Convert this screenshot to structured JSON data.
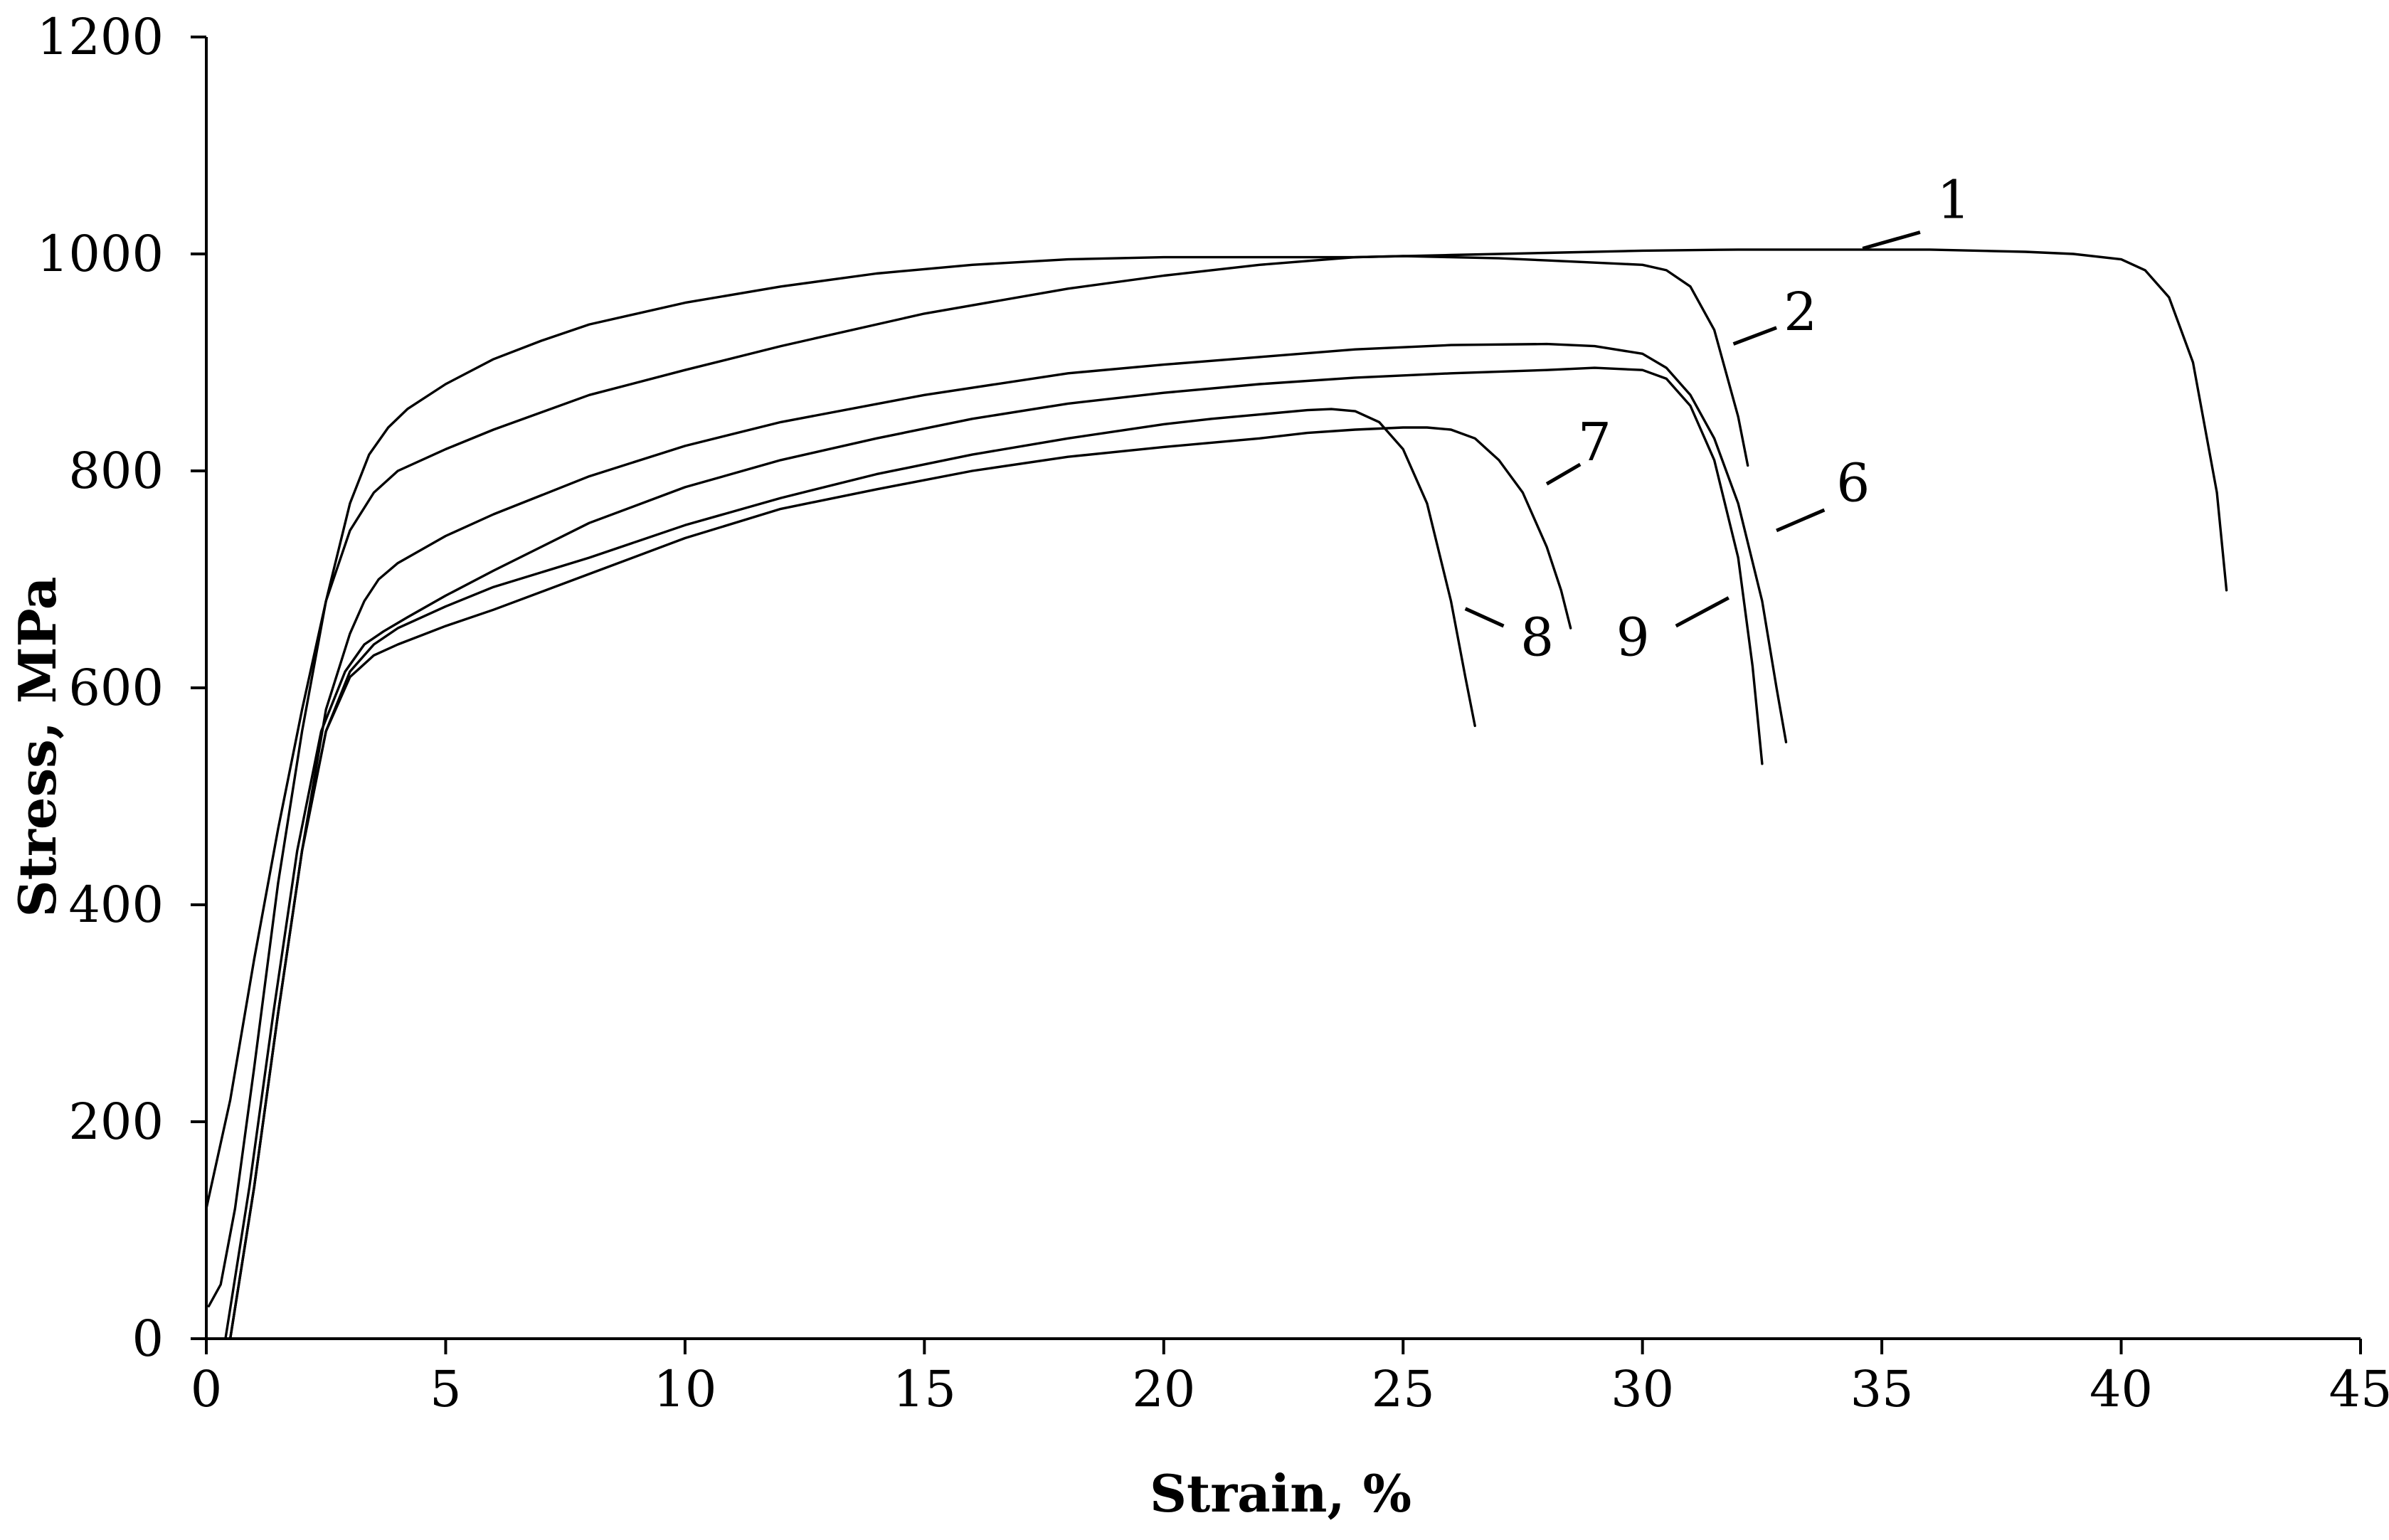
{
  "chart_data": {
    "type": "line",
    "title": "",
    "xlabel": "Strain, %",
    "ylabel": "Stress, MPa",
    "xlim": [
      0,
      45
    ],
    "ylim": [
      0,
      1200
    ],
    "xticks": [
      0,
      5,
      10,
      15,
      20,
      25,
      30,
      35,
      40,
      45
    ],
    "yticks": [
      0,
      200,
      400,
      600,
      800,
      1000,
      1200
    ],
    "grid": false,
    "legend": "none",
    "series": [
      {
        "name": "1",
        "x": [
          0.0,
          0.5,
          1.0,
          1.5,
          2.0,
          2.5,
          3.0,
          3.4,
          3.8,
          4.2,
          5,
          6,
          7,
          8,
          10,
          12,
          14,
          16,
          18,
          20,
          22,
          24,
          26,
          28,
          30,
          32,
          34,
          36,
          38,
          39,
          40,
          40.5,
          41,
          41.5,
          42,
          42.2
        ],
        "y": [
          120,
          220,
          350,
          470,
          580,
          680,
          770,
          815,
          840,
          857,
          880,
          903,
          920,
          935,
          955,
          970,
          982,
          990,
          995,
          997,
          997,
          997,
          999,
          1001,
          1003,
          1004,
          1004,
          1004,
          1002,
          1000,
          995,
          985,
          960,
          900,
          780,
          690
        ]
      },
      {
        "name": "2",
        "x": [
          0.05,
          0.3,
          0.6,
          1.0,
          1.5,
          2.0,
          2.5,
          3.0,
          3.5,
          4.0,
          5,
          6,
          8,
          10,
          12,
          15,
          18,
          20,
          22,
          24,
          25,
          26,
          27,
          28,
          29,
          30,
          30.5,
          31,
          31.5,
          32,
          32.2
        ],
        "y": [
          30,
          50,
          120,
          250,
          420,
          560,
          680,
          745,
          780,
          800,
          820,
          838,
          870,
          893,
          915,
          945,
          968,
          980,
          990,
          997,
          998,
          997,
          996,
          994,
          992,
          990,
          985,
          970,
          930,
          850,
          805
        ]
      },
      {
        "name": "6",
        "x": [
          0.5,
          1.0,
          1.5,
          2.0,
          2.5,
          3.0,
          3.3,
          3.6,
          4.0,
          5,
          6,
          8,
          10,
          12,
          15,
          18,
          20,
          22,
          24,
          26,
          28,
          29,
          30,
          30.5,
          31,
          31.5,
          32,
          32.5,
          32.8,
          33.0
        ],
        "y": [
          0,
          140,
          300,
          450,
          580,
          650,
          680,
          700,
          715,
          740,
          760,
          795,
          823,
          845,
          870,
          890,
          898,
          905,
          912,
          916,
          917,
          915,
          908,
          895,
          870,
          830,
          770,
          680,
          600,
          550
        ]
      },
      {
        "name": "7",
        "x": [
          0.5,
          1.0,
          1.5,
          2.0,
          2.5,
          3.0,
          3.5,
          4.0,
          5,
          6,
          8,
          10,
          12,
          14,
          16,
          18,
          20,
          22,
          23,
          24,
          25,
          25.5,
          26,
          26.5,
          27,
          27.5,
          28,
          28.3,
          28.5
        ],
        "y": [
          0,
          140,
          300,
          450,
          560,
          610,
          630,
          640,
          657,
          672,
          705,
          738,
          765,
          783,
          800,
          813,
          822,
          830,
          835,
          838,
          840,
          840,
          838,
          830,
          810,
          780,
          730,
          690,
          655
        ]
      },
      {
        "name": "8",
        "x": [
          0.5,
          1.0,
          1.5,
          2.0,
          2.5,
          3.0,
          3.5,
          4.0,
          5,
          6,
          8,
          10,
          12,
          14,
          16,
          18,
          20,
          21,
          22,
          23,
          23.5,
          24,
          24.5,
          25,
          25.5,
          26,
          26.3,
          26.5
        ],
        "y": [
          0,
          140,
          300,
          450,
          560,
          615,
          640,
          655,
          675,
          693,
          720,
          750,
          775,
          797,
          815,
          830,
          843,
          848,
          852,
          856,
          857,
          855,
          845,
          820,
          770,
          680,
          610,
          565
        ]
      },
      {
        "name": "9",
        "x": [
          0.4,
          0.9,
          1.4,
          1.9,
          2.4,
          2.9,
          3.3,
          3.7,
          4.2,
          5,
          6,
          8,
          10,
          12,
          14,
          16,
          18,
          20,
          22,
          24,
          26,
          28,
          29,
          30,
          30.5,
          31,
          31.5,
          32,
          32.3,
          32.5
        ],
        "y": [
          0,
          140,
          300,
          450,
          560,
          615,
          640,
          652,
          665,
          685,
          708,
          752,
          785,
          810,
          830,
          848,
          862,
          872,
          880,
          886,
          890,
          893,
          895,
          893,
          885,
          860,
          810,
          720,
          620,
          530
        ]
      }
    ],
    "annotations": [
      {
        "text": "1",
        "x": 36.5,
        "y": 1033,
        "from": [
          34.6,
          1005
        ],
        "to": [
          35.8,
          1020
        ]
      },
      {
        "text": "2",
        "x": 33.3,
        "y": 930,
        "from": [
          31.9,
          917
        ],
        "to": [
          32.8,
          932
        ]
      },
      {
        "text": "6",
        "x": 34.4,
        "y": 772,
        "from": [
          32.8,
          745
        ],
        "to": [
          33.8,
          764
        ]
      },
      {
        "text": "7",
        "x": 29.0,
        "y": 810,
        "from": [
          28.0,
          788
        ],
        "to": [
          28.7,
          806
        ]
      },
      {
        "text": "8",
        "x": 27.8,
        "y": 630,
        "from": [
          26.3,
          673
        ],
        "to": [
          27.1,
          657
        ]
      },
      {
        "text": "9",
        "x": 29.8,
        "y": 630,
        "from": [
          30.7,
          657
        ],
        "to": [
          31.8,
          683
        ]
      }
    ]
  }
}
